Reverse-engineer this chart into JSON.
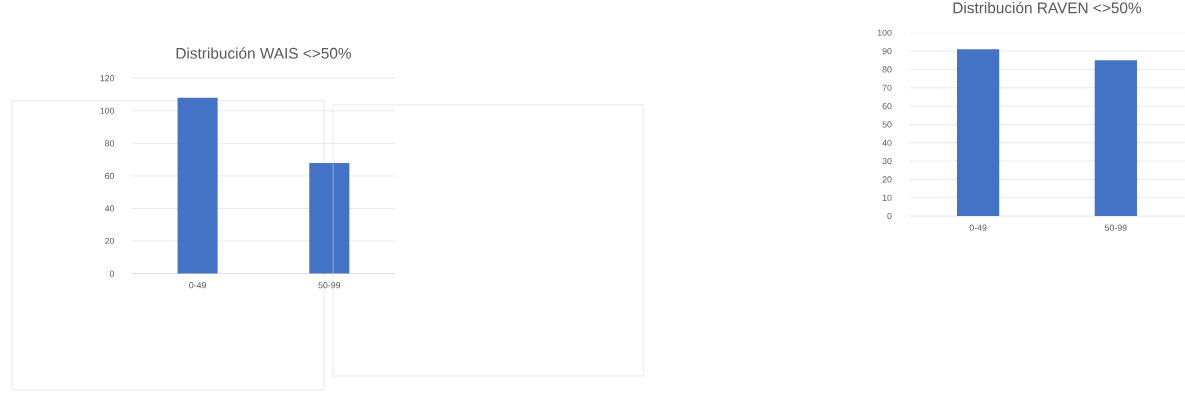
{
  "chart_data": [
    {
      "type": "bar",
      "title": "Distribución WAIS <>50%",
      "categories": [
        "0-49",
        "50-99"
      ],
      "values": [
        108,
        68
      ],
      "color": "#4472c4",
      "ylim": [
        0,
        120
      ],
      "yticks": [
        0,
        20,
        40,
        60,
        80,
        100,
        120
      ],
      "grid": "y"
    },
    {
      "type": "bar",
      "title": "Distribución RAVEN <>50%",
      "categories": [
        "0-49",
        "50-99"
      ],
      "values": [
        91,
        85
      ],
      "color": "#4472c4",
      "ylim": [
        0,
        100
      ],
      "yticks": [
        0,
        10,
        20,
        30,
        40,
        50,
        60,
        70,
        80,
        90,
        100
      ],
      "grid": "y"
    }
  ]
}
